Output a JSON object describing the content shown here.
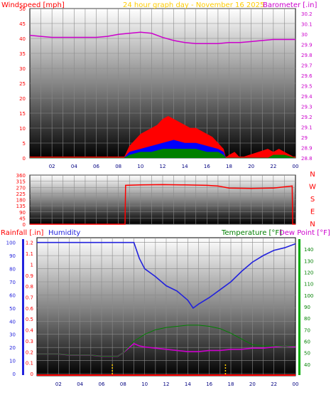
{
  "title": "24 hour graph day - November 16 2025",
  "colors": {
    "windspeed": "#ff0000",
    "windgust": "#ff0000",
    "windavg": "#0000ff",
    "windlow": "#008000",
    "barometer": "#cc00cc",
    "direction": "#ff0000",
    "rainfall": "#ff0000",
    "humidity": "#2222dd",
    "temperature": "#008000",
    "dewpoint": "#cc00cc",
    "title": "#ffcc00",
    "grid": "#8a8a8a"
  },
  "chart_data": [
    {
      "type": "line",
      "ylabel_left": "Windspeed [mph]",
      "ylabel_right": "Barometer [.in]",
      "x_ticks": [
        "02",
        "04",
        "06",
        "08",
        "10",
        "12",
        "14",
        "16",
        "18",
        "20",
        "22",
        "00"
      ],
      "y_left_ticks": [
        "0",
        "5",
        "10",
        "15",
        "20",
        "25",
        "30",
        "35",
        "40",
        "45",
        "50"
      ],
      "y_right_ticks": [
        "28.8",
        "28.9",
        "29",
        "29.1",
        "29.2",
        "29.3",
        "29.4",
        "29.5",
        "29.6",
        "29.7",
        "29.8",
        "29.9",
        "30",
        "30.1",
        "30.2"
      ],
      "ylim_left": [
        0,
        50
      ],
      "ylim_right": [
        28.8,
        30.25
      ],
      "series": [
        {
          "name": "Barometer",
          "axis": "right",
          "x": [
            0,
            1,
            2,
            3,
            4,
            5,
            6,
            7,
            8,
            9,
            10,
            11,
            12,
            13,
            14,
            15,
            16,
            17,
            18,
            19,
            20,
            21,
            22,
            23,
            24
          ],
          "values": [
            29.99,
            29.98,
            29.97,
            29.97,
            29.97,
            29.97,
            29.97,
            29.98,
            30.0,
            30.01,
            30.02,
            30.01,
            29.97,
            29.94,
            29.92,
            29.91,
            29.91,
            29.91,
            29.92,
            29.92,
            29.93,
            29.94,
            29.95,
            29.95,
            29.95
          ]
        },
        {
          "name": "Wind gust",
          "axis": "left",
          "x": [
            0,
            8.5,
            9.0,
            9.5,
            10.0,
            10.5,
            11.0,
            11.5,
            12.0,
            12.5,
            13.0,
            13.5,
            14.0,
            14.5,
            15.0,
            15.5,
            16.0,
            16.5,
            17.0,
            17.5,
            17.7,
            18.0,
            18.5,
            19.0,
            21.5,
            22.0,
            22.5,
            23.0,
            24.0
          ],
          "values": [
            0,
            0,
            4,
            6,
            8,
            9,
            10,
            11,
            13,
            14,
            13,
            12,
            11,
            10,
            10,
            9,
            8,
            7,
            5,
            3,
            0,
            1,
            2,
            0,
            3,
            2,
            3,
            2,
            0
          ]
        },
        {
          "name": "Wind average",
          "axis": "left",
          "x": [
            0,
            8.5,
            9.0,
            10.0,
            11.0,
            12.0,
            13.0,
            14.0,
            15.0,
            16.0,
            17.0,
            17.5,
            17.7,
            24.0
          ],
          "values": [
            0,
            0,
            2,
            3,
            4,
            5,
            6,
            5,
            5,
            4,
            3,
            2,
            0,
            0
          ]
        },
        {
          "name": "Wind low",
          "axis": "left",
          "x": [
            0,
            8.5,
            9.0,
            10.0,
            11.0,
            12.0,
            13.0,
            14.0,
            15.0,
            16.0,
            17.0,
            17.5,
            17.7,
            21.5,
            22.0,
            23.0,
            24.0
          ],
          "values": [
            0,
            0,
            1,
            2,
            2,
            3,
            3,
            3,
            3,
            2,
            2,
            1,
            0,
            0,
            1,
            1,
            0
          ]
        }
      ]
    },
    {
      "type": "line",
      "y_ticks": [
        "0",
        "45",
        "90",
        "135",
        "180",
        "225",
        "270",
        "315",
        "360"
      ],
      "compass_labels": [
        "N",
        "W",
        "S",
        "E",
        "N"
      ],
      "ylim": [
        0,
        360
      ],
      "series": [
        {
          "name": "Wind direction",
          "x": [
            0,
            8.6,
            8.65,
            10,
            12,
            14,
            16,
            17.0,
            18.0,
            20.0,
            22.0,
            23.7,
            23.75,
            24
          ],
          "values": [
            0,
            0,
            285,
            288,
            290,
            288,
            285,
            280,
            265,
            262,
            265,
            280,
            0,
            0
          ]
        }
      ]
    },
    {
      "type": "line",
      "ylabel_left": "Rainfall [.in]",
      "ylabel_left2": "Humidity",
      "ylabel_right": "Temperature [°F]",
      "ylabel_right2": "Dew Point [°F]",
      "x_ticks": [
        "02",
        "04",
        "06",
        "08",
        "10",
        "12",
        "14",
        "16",
        "18",
        "20",
        "22",
        "00"
      ],
      "y_humidity_ticks": [
        "0",
        "10",
        "20",
        "30",
        "40",
        "50",
        "60",
        "70",
        "80",
        "90",
        "100"
      ],
      "y_rain_ticks": [
        "0",
        "0.1",
        "0.2",
        "0.3",
        "0.4",
        "0.5",
        "0.6",
        "0.7",
        "0.8",
        "0.9",
        "1",
        "1.1",
        "1.2"
      ],
      "y_temp_ticks": [
        "40",
        "50",
        "60",
        "70",
        "80",
        "90",
        "100",
        "110",
        "120",
        "130",
        "140"
      ],
      "ylim_rain": [
        0,
        1.2
      ],
      "ylim_temp": [
        30,
        150
      ],
      "series": [
        {
          "name": "Humidity",
          "axis": "humidity",
          "x": [
            0,
            1,
            2,
            3,
            4,
            5,
            6,
            7,
            8,
            9.0,
            9.5,
            10,
            11,
            12,
            13,
            14,
            14.5,
            15,
            16,
            17,
            18,
            19,
            20,
            21,
            22,
            23,
            24
          ],
          "values": [
            100,
            100,
            100,
            100,
            100,
            100,
            100,
            100,
            100,
            100,
            88,
            80,
            74,
            67,
            63,
            56,
            50,
            53,
            58,
            64,
            70,
            78,
            85,
            90,
            94,
            96,
            99
          ]
        },
        {
          "name": "Dew Point",
          "axis": "temperature",
          "x": [
            0,
            1,
            2,
            3,
            4,
            5,
            6,
            7,
            7.5,
            8,
            8.5,
            9,
            9.5,
            10,
            11,
            12,
            13,
            14,
            15,
            16,
            17,
            18,
            19,
            20,
            21,
            22,
            23,
            24
          ],
          "values": [
            49,
            49,
            49,
            48,
            48,
            48,
            47,
            47,
            47,
            50,
            54,
            58,
            56,
            55,
            54,
            53,
            52,
            51,
            51,
            52,
            52,
            53,
            53,
            54,
            54,
            55,
            56,
            55
          ]
        },
        {
          "name": "Temperature",
          "axis": "temperature",
          "x": [
            0,
            1,
            2,
            3,
            4,
            5,
            6,
            7,
            7.5,
            8,
            8.5,
            9,
            10,
            11,
            12,
            13,
            14,
            15,
            16,
            17,
            18,
            19,
            20,
            21,
            22,
            23,
            24
          ],
          "values": [
            49,
            49,
            49,
            48,
            48,
            48,
            47,
            47,
            47,
            50,
            55,
            60,
            66,
            70,
            72,
            73,
            74,
            74,
            73,
            71,
            67,
            62,
            57,
            56,
            56,
            56,
            56
          ]
        },
        {
          "name": "Rainfall",
          "axis": "rain",
          "x": [
            0,
            24
          ],
          "values": [
            0,
            0
          ]
        }
      ]
    }
  ]
}
